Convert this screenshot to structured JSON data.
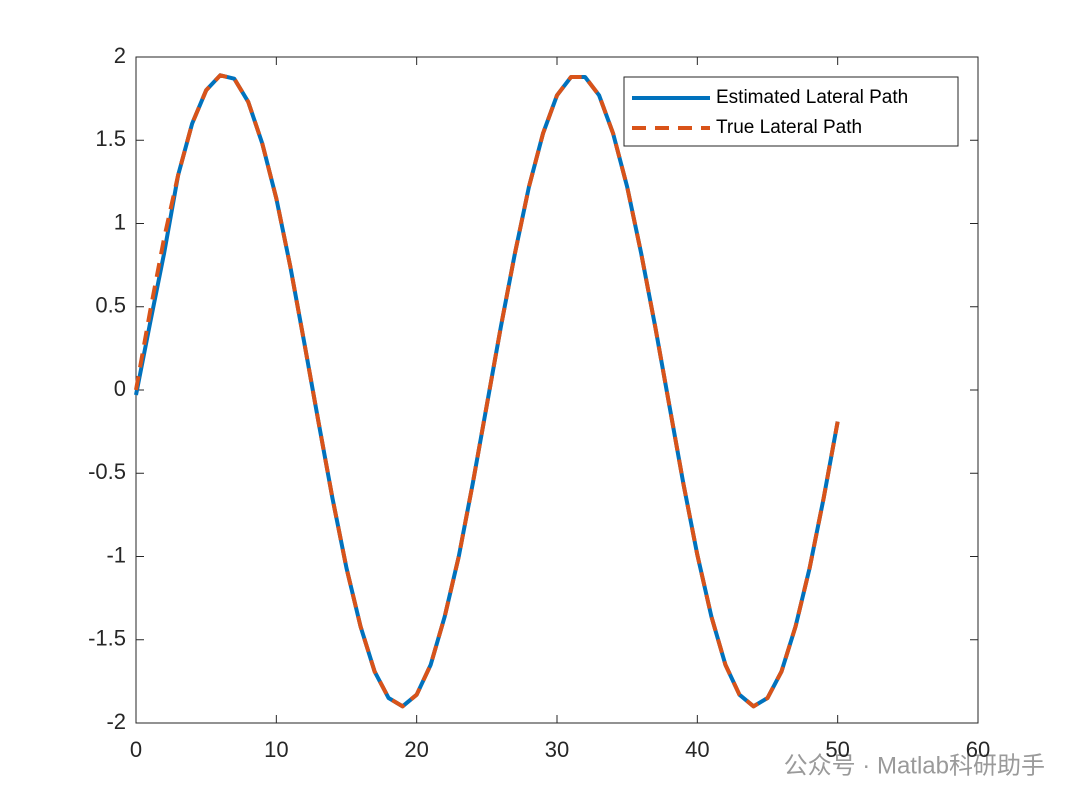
{
  "chart_data": {
    "type": "line",
    "x": [
      0,
      1,
      2,
      3,
      4,
      5,
      6,
      7,
      8,
      9,
      10,
      11,
      12,
      13,
      14,
      15,
      16,
      17,
      18,
      19,
      20,
      21,
      22,
      23,
      24,
      25,
      26,
      27,
      28,
      29,
      30,
      31,
      32,
      33,
      34,
      35,
      36,
      37,
      38,
      39,
      40,
      41,
      42,
      43,
      44,
      45,
      46,
      47,
      48,
      49,
      50
    ],
    "series": [
      {
        "name": "Estimated Lateral Path",
        "color": "#0072BD",
        "dashed": false,
        "values": [
          -0.03,
          0.4,
          0.82,
          1.29,
          1.6,
          1.8,
          1.89,
          1.87,
          1.73,
          1.48,
          1.15,
          0.74,
          0.28,
          -0.19,
          -0.65,
          -1.07,
          -1.42,
          -1.69,
          -1.85,
          -1.9,
          -1.83,
          -1.65,
          -1.36,
          -1.0,
          -0.56,
          -0.09,
          0.38,
          0.82,
          1.22,
          1.54,
          1.77,
          1.88,
          1.88,
          1.77,
          1.54,
          1.22,
          0.82,
          0.38,
          -0.09,
          -0.56,
          -0.99,
          -1.36,
          -1.65,
          -1.83,
          -1.9,
          -1.85,
          -1.69,
          -1.42,
          -1.07,
          -0.65,
          -0.19
        ]
      },
      {
        "name": "True Lateral Path",
        "color": "#D95319",
        "dashed": true,
        "values": [
          0,
          0.47,
          0.91,
          1.29,
          1.6,
          1.8,
          1.89,
          1.87,
          1.73,
          1.48,
          1.15,
          0.74,
          0.28,
          -0.19,
          -0.65,
          -1.07,
          -1.42,
          -1.69,
          -1.85,
          -1.9,
          -1.83,
          -1.65,
          -1.36,
          -1.0,
          -0.56,
          -0.09,
          0.38,
          0.82,
          1.22,
          1.54,
          1.77,
          1.88,
          1.88,
          1.77,
          1.54,
          1.22,
          0.82,
          0.38,
          -0.09,
          -0.56,
          -0.99,
          -1.36,
          -1.65,
          -1.83,
          -1.9,
          -1.85,
          -1.69,
          -1.42,
          -1.07,
          -0.65,
          -0.19
        ]
      }
    ],
    "xlim": [
      0,
      60
    ],
    "xticks": [
      0,
      10,
      20,
      30,
      40,
      50,
      60
    ],
    "ylim": [
      -2,
      2
    ],
    "yticks": [
      -2,
      -1.5,
      -1,
      -0.5,
      0,
      0.5,
      1,
      1.5,
      2
    ],
    "legend": "upper-right"
  },
  "watermark": "公众号 · Matlab科研助手"
}
